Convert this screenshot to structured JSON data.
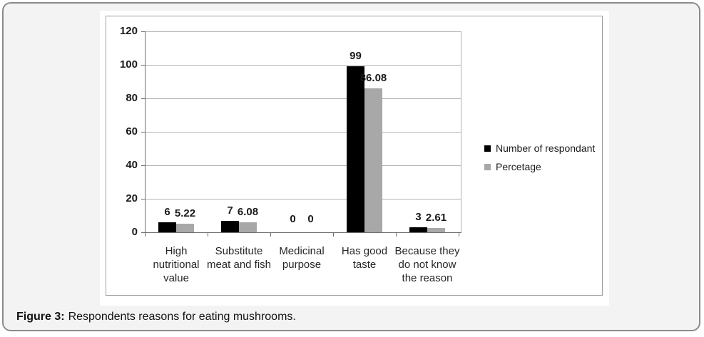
{
  "figure": {
    "caption_label": "Figure 3:",
    "caption_text": "Respondents reasons for eating mushrooms."
  },
  "chart_data": {
    "type": "bar",
    "categories": [
      "High nutritional value",
      "Substitute meat and fish",
      "Medicinal purpose",
      "Has good taste",
      "Because they do not know the reason"
    ],
    "category_lines": [
      [
        "High",
        "nutritional",
        "value"
      ],
      [
        "Substitute",
        "meat and fish"
      ],
      [
        "Medicinal",
        "purpose"
      ],
      [
        "Has good",
        "taste"
      ],
      [
        "Because they",
        "do not know",
        "the reason"
      ]
    ],
    "series": [
      {
        "name": "Number of respondant",
        "color": "#000000",
        "values": [
          6,
          7,
          0,
          99,
          3
        ],
        "value_labels": [
          "6",
          "7",
          "0",
          "99",
          "3"
        ]
      },
      {
        "name": "Percetage",
        "color": "#a8a8a8",
        "values": [
          5.22,
          6.08,
          0,
          86.08,
          2.61
        ],
        "value_labels": [
          "5.22",
          "6.08",
          "0",
          "86.08",
          "2.61"
        ]
      }
    ],
    "title": "",
    "xlabel": "",
    "ylabel": "",
    "ylim": [
      0,
      120
    ],
    "ytick_step": 20,
    "ytick_labels": [
      "0",
      "20",
      "40",
      "60",
      "80",
      "100",
      "120"
    ],
    "grid": true,
    "legend_position": "right"
  }
}
